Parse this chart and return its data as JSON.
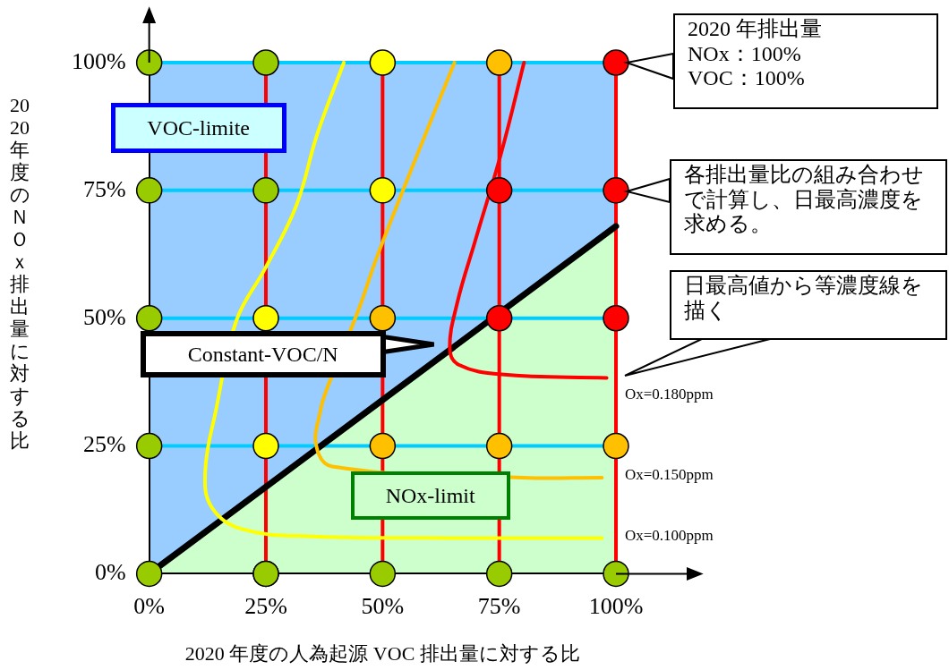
{
  "chart_data": {
    "type": "scatter",
    "xlabel": "2020 年度の人為起源 VOC 排出量に対する比",
    "ylabel": "2020 年度のＮＯｘ排出量に対する比",
    "xlim": [
      0,
      100
    ],
    "ylim": [
      0,
      100
    ],
    "xticks": [
      {
        "value": 0,
        "label": "0%"
      },
      {
        "value": 25,
        "label": "25%"
      },
      {
        "value": 50,
        "label": "50%"
      },
      {
        "value": 75,
        "label": "75%"
      },
      {
        "value": 100,
        "label": "100%"
      }
    ],
    "yticks": [
      {
        "value": 0,
        "label": "0%"
      },
      {
        "value": 25,
        "label": "25%"
      },
      {
        "value": 50,
        "label": "50%"
      },
      {
        "value": 75,
        "label": "75%"
      },
      {
        "value": 100,
        "label": "100%"
      }
    ],
    "grid": true,
    "legend": false,
    "marker": "circle",
    "series": [
      {
        "type": "line",
        "color": "#000000",
        "marker": "none",
        "x": [
          0,
          100
        ],
        "values": [
          0,
          68
        ]
      },
      {
        "type": "line",
        "color": "#ffff00",
        "marker": "none",
        "x": [
          41.7,
          36,
          31.5,
          25,
          18.7,
          14.3,
          12,
          13.4,
          20,
          35.4,
          64,
          97
        ],
        "values": [
          100,
          86,
          72,
          60,
          49.6,
          32,
          20,
          13,
          8.7,
          7.3,
          7,
          7
        ]
      },
      {
        "type": "line",
        "color": "#ffc000",
        "marker": "none",
        "x": [
          65.4,
          58.3,
          48.8,
          45,
          38,
          36.7,
          35.8,
          39.2,
          80,
          97
        ],
        "values": [
          100,
          84,
          62,
          52,
          36,
          32,
          25,
          21,
          18.8,
          18.8
        ]
      },
      {
        "type": "line",
        "color": "#ff0000",
        "marker": "none",
        "x": [
          80.3,
          75.5,
          69.8,
          66,
          64.4,
          66.3,
          75.5,
          98
        ],
        "values": [
          100,
          82.6,
          65,
          53,
          44,
          40.9,
          39,
          38.3
        ]
      },
      {
        "color": "#99cc00",
        "x": [
          0,
          0,
          0,
          0,
          0,
          25,
          25,
          50,
          75,
          100,
          25,
          25
        ],
        "values": [
          0,
          25,
          50,
          75,
          100,
          0,
          0,
          0,
          0,
          0,
          75,
          100
        ]
      },
      {
        "color": "#ffff00",
        "x": [
          25,
          25,
          50,
          50
        ],
        "values": [
          25,
          50,
          75,
          100
        ]
      },
      {
        "color": "#ffc000",
        "x": [
          50,
          50,
          75,
          100,
          75
        ],
        "values": [
          25,
          50,
          25,
          25,
          100
        ]
      },
      {
        "color": "#ff0000",
        "x": [
          75,
          75,
          100,
          100,
          100
        ],
        "values": [
          50,
          75,
          50,
          75,
          100
        ]
      }
    ],
    "annotations": [
      "Ox=0.180ppm",
      "Ox=0.150ppm",
      "Ox=0.100ppm",
      "2020 年排出量\nNOx：100%\nVOC：100%",
      "各排出量比の組み合わせで計算し、日最高濃度を求める。",
      "日最高値から等濃度線を描く",
      "VOC-limite",
      "NOx-limit",
      "Constant-VOC/N"
    ]
  }
}
